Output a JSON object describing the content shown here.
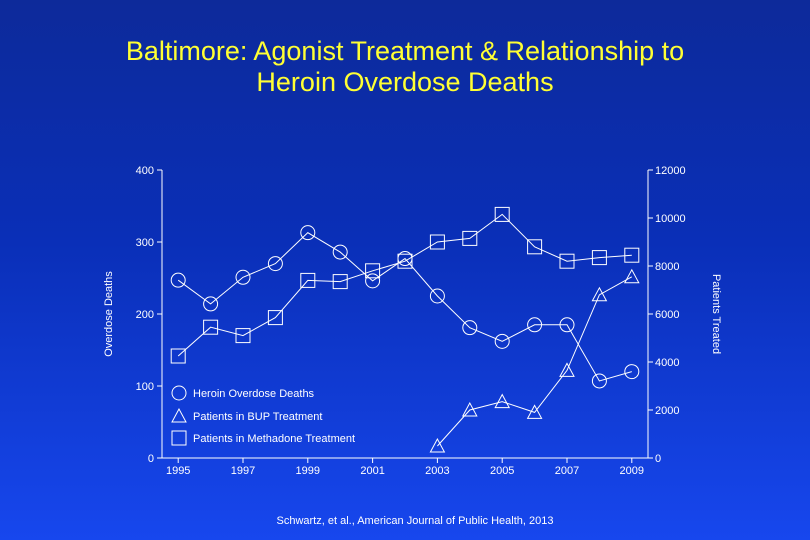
{
  "title_line1": "Baltimore: Agonist Treatment & Relationship to",
  "title_line2": "Heroin Overdose Deaths",
  "source": "Schwartz, et al., American Journal of Public Health, 2013",
  "colors": {
    "background_top": "#0d2a9a",
    "background_bottom": "#1747ee",
    "title": "#ffff33",
    "foreground": "#ffffff"
  },
  "chart_data": {
    "type": "line",
    "ylabel_left": "Overdose Deaths",
    "ylabel_right": "Patients Treated",
    "xlim": [
      1994.5,
      2009.5
    ],
    "ylim_left": [
      0,
      400
    ],
    "ylim_right": [
      0,
      12000
    ],
    "x_ticks": [
      "1995",
      "1997",
      "1999",
      "2001",
      "2003",
      "2005",
      "2007",
      "2009"
    ],
    "y_ticks_left": [
      "0",
      "100",
      "200",
      "300",
      "400"
    ],
    "y_ticks_right": [
      "0",
      "2000",
      "4000",
      "6000",
      "8000",
      "10000",
      "12000"
    ],
    "legend_placement": "lower-left",
    "series": [
      {
        "name": "Heroin Overdose Deaths",
        "axis": "left",
        "marker": "circle",
        "x": [
          1995,
          1996,
          1997,
          1998,
          1999,
          2000,
          2001,
          2002,
          2003,
          2004,
          2005,
          2006,
          2007,
          2008,
          2009
        ],
        "y": [
          247,
          214,
          251,
          270,
          313,
          286,
          246,
          277,
          225,
          181,
          162,
          185,
          185,
          107,
          120
        ]
      },
      {
        "name": "Patients in BUP Treatment",
        "axis": "right",
        "marker": "triangle",
        "x": [
          2003,
          2004,
          2005,
          2006,
          2007,
          2008,
          2009
        ],
        "y": [
          500,
          2000,
          2350,
          1900,
          3650,
          6800,
          7550
        ]
      },
      {
        "name": "Patients in Methadone Treatment",
        "axis": "right",
        "marker": "square",
        "x": [
          1995,
          1996,
          1997,
          1998,
          1999,
          2000,
          2001,
          2002,
          2003,
          2004,
          2005,
          2006,
          2007,
          2008,
          2009
        ],
        "y": [
          4250,
          5450,
          5100,
          5850,
          7400,
          7350,
          7800,
          8200,
          9000,
          9150,
          10150,
          8800,
          8200,
          8350,
          8450
        ]
      }
    ]
  }
}
